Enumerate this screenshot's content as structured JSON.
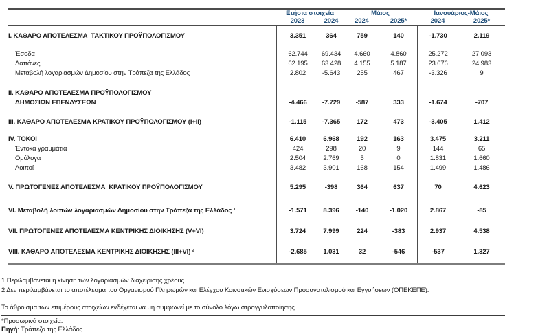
{
  "table": {
    "header": {
      "accent_color": "#1f4e79",
      "groups": [
        {
          "label": "Ετήσια στοιχεία",
          "years": [
            "2023",
            "2024"
          ]
        },
        {
          "label": "Μάιος",
          "years": [
            "2024",
            "2025*"
          ]
        },
        {
          "label": "Ιανουάριος-Μάιος",
          "years": [
            "2024",
            "2025*"
          ]
        }
      ]
    },
    "rows": [
      {
        "label": "I. ΚΑΘΑΡΟ ΑΠΟΤΕΛΕΣΜΑ  ΤΑΚΤΙΚΟΥ ΠΡΟΫΠΟΛΟΓΙΣΜΟΥ",
        "bold": true,
        "values": [
          "3.351",
          "364",
          "759",
          "140",
          "-1.730",
          "2.119"
        ]
      },
      {
        "label": "Έσοδα",
        "indent": true,
        "values": [
          "62.744",
          "69.434",
          "4.660",
          "4.860",
          "25.272",
          "27.093"
        ]
      },
      {
        "label": "Δαπάνες",
        "indent": true,
        "values": [
          "62.195",
          "63.428",
          "4.155",
          "5.187",
          "23.676",
          "24.983"
        ]
      },
      {
        "label": "Μεταβολή λογαριασμών Δημοσίου στην Τράπεζα της Ελλάδος",
        "indent": true,
        "values": [
          "2.802",
          "-5.643",
          "255",
          "467",
          "-3.326",
          "9"
        ]
      },
      {
        "label": "II. ΚΑΘΑΡΟ ΑΠΟΤΕΛΕΣΜΑ ΠΡΟΫΠΟΛΟΓΙΣΜΟΥ",
        "label2": "ΔΗΜΟΣΙΩΝ ΕΠΕΝΔΥΣΕΩΝ",
        "bold": true,
        "values": [
          "-4.466",
          "-7.729",
          "-587",
          "333",
          "-1.674",
          "-707"
        ]
      },
      {
        "label": "III. ΚΑΘΑΡΟ ΑΠΟΤΕΛΕΣΜΑ ΚΡΑΤΙΚΟΥ ΠΡΟΫΠΟΛΟΓΙΣΜΟΥ (I+II)",
        "bold": true,
        "values": [
          "-1.115",
          "-7.365",
          "172",
          "473",
          "-3.405",
          "1.412"
        ]
      },
      {
        "label": "IV. ΤΟΚΟΙ",
        "bold": true,
        "values": [
          "6.410",
          "6.968",
          "192",
          "163",
          "3.475",
          "3.211"
        ]
      },
      {
        "label": "Έντοκα γραμμάτια",
        "indent": true,
        "values": [
          "424",
          "298",
          "20",
          "9",
          "144",
          "65"
        ]
      },
      {
        "label": "Ομόλογα",
        "indent": true,
        "values": [
          "2.504",
          "2.769",
          "5",
          "0",
          "1.831",
          "1.660"
        ]
      },
      {
        "label": "Λοιποί",
        "indent": true,
        "values": [
          "3.482",
          "3.901",
          "168",
          "154",
          "1.499",
          "1.486"
        ]
      },
      {
        "label": "V. ΠΡΩΤΟΓΕΝΕΣ ΑΠΟΤΕΛΕΣΜΑ  ΚΡΑΤΙΚΟΥ ΠΡΟΫΠΟΛΟΓΙΣΜΟΥ",
        "bold": true,
        "values": [
          "5.295",
          "-398",
          "364",
          "637",
          "70",
          "4.623"
        ]
      },
      {
        "label": "VI. Μεταβολή λοιπών λογαριασμών Δημοσίου στην Τράπεζα της Ελλάδος ¹",
        "bold": true,
        "values": [
          "-1.571",
          "8.396",
          "-140",
          "-1.020",
          "2.867",
          "-85"
        ]
      },
      {
        "label": "VII. ΠΡΩΤΟΓΕΝΕΣ ΑΠΟΤΕΛΕΣΜΑ ΚΕΝΤΡΙΚΗΣ ΔΙΟΙΚΗΣΗΣ (V+VI)",
        "bold": true,
        "values": [
          "3.724",
          "7.999",
          "224",
          "-383",
          "2.937",
          "4.538"
        ]
      },
      {
        "label": "VIII. ΚΑΘΑΡΟ ΑΠΟΤΕΛΕΣΜΑ ΚΕΝΤΡΙΚΗΣ ΔΙΟΙΚΗΣΗΣ (III+VI) ²",
        "bold": true,
        "values": [
          "-2.685",
          "1.031",
          "32",
          "-546",
          "-537",
          "1.327"
        ]
      }
    ],
    "footnotes": {
      "fn1": "1 Περιλαμβάνεται η κίνηση των λογαριασμών διαχείρισης χρέους.",
      "fn2": "2 Δεν περιλαμβάνεται το αποτέλεσμα του Οργανισμού Πληρωμών και Ελέγχου Κοινοτικών Ενισχύσεων Προσανατολισμού και Εγγυήσεων (ΟΠΕΚΕΠΕ).",
      "rounding": "Το άθροισμα των επιμέρους στοιχείων ενδέχεται να μη συμφωνεί με το σύνολο λόγω στρογγυλοποίησης.",
      "provisional": "*Προσωρινά στοιχεία.",
      "source_label": "Πηγή",
      "source_text": ": Τράπεζα της Ελλάδος."
    }
  }
}
